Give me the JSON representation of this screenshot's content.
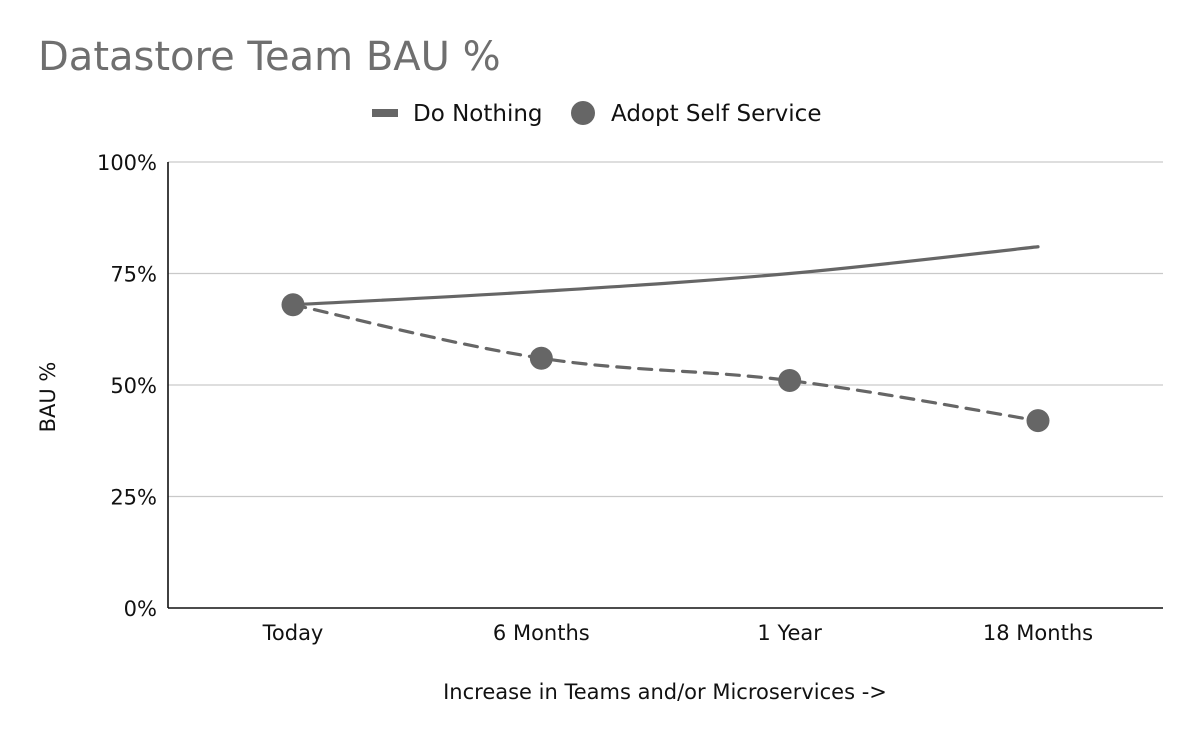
{
  "chart_data": {
    "type": "line",
    "title": "Datastore Team BAU %",
    "xlabel": "Increase in Teams and/or Microservices ->",
    "ylabel": "BAU %",
    "categories": [
      "Today",
      "6 Months",
      "1 Year",
      "18 Months"
    ],
    "y_ticks": [
      "0%",
      "25%",
      "50%",
      "75%",
      "100%"
    ],
    "ylim": [
      0,
      100
    ],
    "grid": true,
    "legend_position": "top",
    "series": [
      {
        "name": "Do Nothing",
        "values": [
          68,
          71,
          75,
          81
        ],
        "style": "solid-line",
        "color": "#666666"
      },
      {
        "name": "Adopt Self Service",
        "values": [
          68,
          56,
          51,
          42
        ],
        "style": "dashed-line-with-markers",
        "color": "#666666"
      }
    ]
  }
}
